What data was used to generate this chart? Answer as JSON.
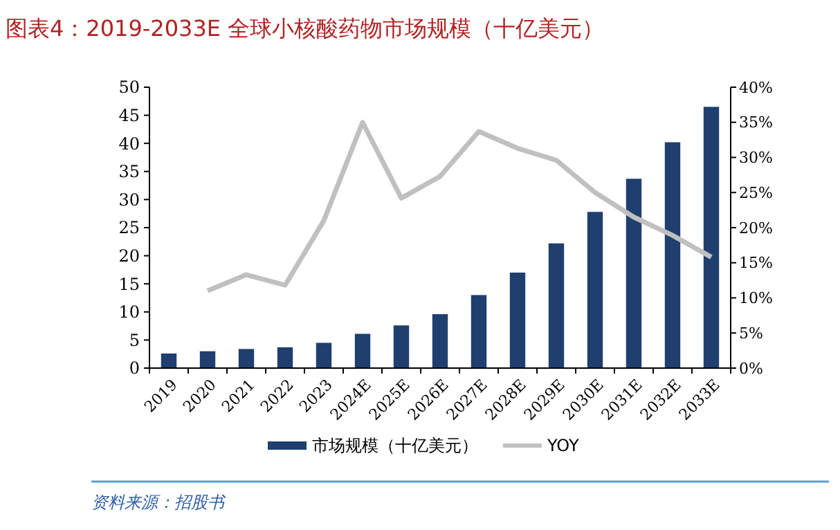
{
  "chart_data": {
    "type": "bar",
    "title": "图表4：2019-2033E 全球小核酸药物市场规模（十亿美元）",
    "annotations": [
      "资料来源：招股书"
    ],
    "categories": [
      "2019",
      "2020",
      "2021",
      "2022",
      "2023",
      "2024E",
      "2025E",
      "2026E",
      "2027E",
      "2028E",
      "2029E",
      "2030E",
      "2031E",
      "2032E",
      "2033E"
    ],
    "series": [
      {
        "name": "市场规模（十亿美元）",
        "color": "#1f3f6e",
        "values": [
          2.6,
          3.0,
          3.4,
          3.7,
          4.5,
          6.1,
          7.6,
          9.6,
          13.0,
          17.0,
          22.2,
          27.8,
          33.7,
          40.2,
          46.5
        ]
      },
      {
        "name": "YOY",
        "type": "line",
        "axis": "y2",
        "color": "#c0c0c0",
        "values": [
          null,
          11.0,
          13.3,
          11.8,
          21.0,
          35.0,
          24.2,
          27.3,
          33.7,
          31.3,
          29.6,
          25.0,
          21.5,
          18.9,
          15.8
        ]
      }
    ],
    "ylim": [
      0,
      50
    ],
    "yticks": [
      0,
      5,
      10,
      15,
      20,
      25,
      30,
      35,
      40,
      45,
      50
    ],
    "y2lim": [
      0,
      40
    ],
    "y2ticks": [
      {
        "value": 0,
        "label": "0%"
      },
      {
        "value": 5,
        "label": "5%"
      },
      {
        "value": 10,
        "label": "10%"
      },
      {
        "value": 15,
        "label": "15%"
      },
      {
        "value": 20,
        "label": "20%"
      },
      {
        "value": 25,
        "label": "25%"
      },
      {
        "value": 30,
        "label": "30%"
      },
      {
        "value": 35,
        "label": "35%"
      },
      {
        "value": 40,
        "label": "40%"
      }
    ],
    "grid": false,
    "legend": "bottom",
    "marker": "none"
  }
}
